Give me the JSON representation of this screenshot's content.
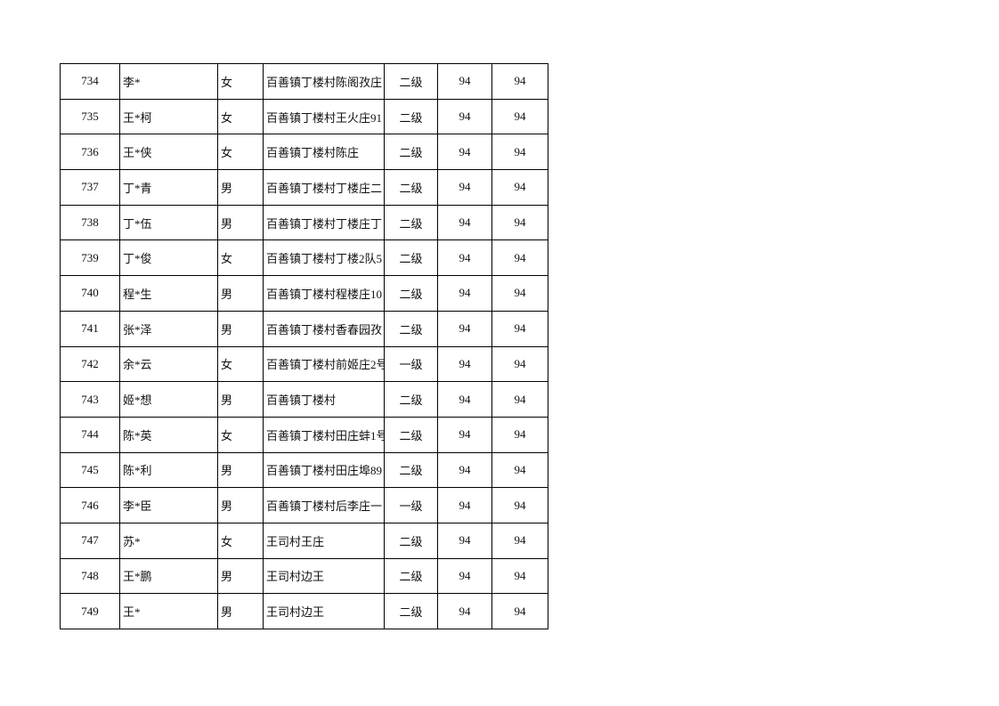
{
  "table": {
    "rows": [
      [
        734,
        "李*",
        "女",
        "百善镇丁楼村陈阁孜庄",
        "二级",
        94,
        94
      ],
      [
        735,
        "王*柯",
        "女",
        "百善镇丁楼村王火庄91",
        "二级",
        94,
        94
      ],
      [
        736,
        "王*侠",
        "女",
        "百善镇丁楼村陈庄",
        "二级",
        94,
        94
      ],
      [
        737,
        "丁*青",
        "男",
        "百善镇丁楼村丁楼庄二",
        "二级",
        94,
        94
      ],
      [
        738,
        "丁*伍",
        "男",
        "百善镇丁楼村丁楼庄丁",
        "二级",
        94,
        94
      ],
      [
        739,
        "丁*俊",
        "女",
        "百善镇丁楼村丁楼2队5",
        "二级",
        94,
        94
      ],
      [
        740,
        "程*生",
        "男",
        "百善镇丁楼村程楼庄10",
        "二级",
        94,
        94
      ],
      [
        741,
        "张*泽",
        "男",
        "百善镇丁楼村香春园孜",
        "二级",
        94,
        94
      ],
      [
        742,
        "余*云",
        "女",
        "百善镇丁楼村前姬庄2号",
        "一级",
        94,
        94
      ],
      [
        743,
        "姬*想",
        "男",
        "百善镇丁楼村",
        "二级",
        94,
        94
      ],
      [
        744,
        "陈*英",
        "女",
        "百善镇丁楼村田庄蚌1号",
        "二级",
        94,
        94
      ],
      [
        745,
        "陈*利",
        "男",
        "百善镇丁楼村田庄埠89",
        "二级",
        94,
        94
      ],
      [
        746,
        "李*臣",
        "男",
        "百善镇丁楼村后李庄一",
        "一级",
        94,
        94
      ],
      [
        747,
        "苏*",
        "女",
        "王司村王庄",
        "二级",
        94,
        94
      ],
      [
        748,
        "王*鹏",
        "男",
        "王司村边王",
        "二级",
        94,
        94
      ],
      [
        749,
        "王*",
        "男",
        "王司村边王",
        "二级",
        94,
        94
      ]
    ]
  }
}
